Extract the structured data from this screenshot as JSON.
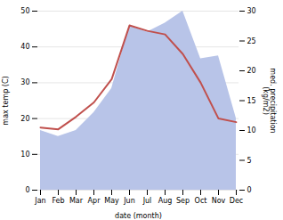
{
  "chart_data": {
    "type": "line",
    "categories": [
      "Jan",
      "Feb",
      "Mar",
      "Apr",
      "May",
      "Jun",
      "Jul",
      "Aug",
      "Sep",
      "Oct",
      "Nov",
      "Dec"
    ],
    "series": [
      {
        "type": "area",
        "axis": "y2",
        "color": "#b8c4e8",
        "values": [
          10.0,
          9.0,
          10.0,
          13.0,
          17.0,
          27.5,
          26.5,
          28.0,
          30.0,
          22.0,
          22.5,
          12.0
        ]
      },
      {
        "type": "line",
        "color": "#c0504d",
        "values": [
          17.5,
          17.0,
          20.5,
          24.5,
          31.0,
          46.0,
          44.5,
          43.5,
          38.0,
          30.0,
          20.0,
          19.0
        ]
      }
    ],
    "xlabel": "date (month)",
    "ylabel": "max temp (C)",
    "y2label": "med. precipitation\n(kg/m2)",
    "ylim": [
      0,
      50
    ],
    "yticks": [
      0,
      10,
      20,
      30,
      40,
      50
    ],
    "y2lim": [
      0,
      30
    ],
    "y2ticks": [
      0,
      5,
      10,
      15,
      20,
      25,
      30
    ],
    "grid": true
  }
}
